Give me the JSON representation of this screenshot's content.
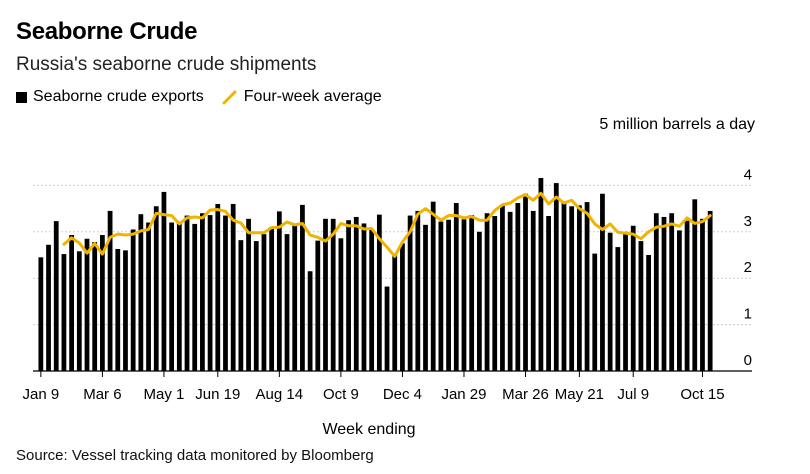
{
  "title": "Seaborne Crude",
  "subtitle": "Russia's seaborne crude shipments",
  "legend": {
    "bars": "Seaborne crude exports",
    "line": "Four-week average"
  },
  "unit_label": "5 million barrels a day",
  "xlabel": "Week ending",
  "source": "Source: Vessel tracking data monitored by Bloomberg",
  "colors": {
    "bars": "#000000",
    "line": "#f0b400",
    "axis": "#000000",
    "grid": "#cccccc"
  },
  "chart_data": {
    "type": "bar",
    "x_tick_labels": [
      "Jan 9",
      "Mar 6",
      "May 1",
      "Jun 19",
      "Aug 14",
      "Oct 9",
      "Dec 4",
      "Jan 29",
      "Mar 26",
      "May 21",
      "Jul 9",
      "Oct 15"
    ],
    "y_ticks": [
      0,
      1,
      2,
      3,
      4,
      5
    ],
    "ylim": [
      0,
      5
    ],
    "ylabel": "5 million barrels a day",
    "xlabel": "Week ending",
    "series": [
      {
        "name": "Seaborne crude exports",
        "kind": "bar",
        "values": [
          2.45,
          2.72,
          3.23,
          2.52,
          2.93,
          2.58,
          2.85,
          2.78,
          2.93,
          3.45,
          2.63,
          2.6,
          3.05,
          3.38,
          3.2,
          3.55,
          3.86,
          3.2,
          3.22,
          3.35,
          3.17,
          3.4,
          3.36,
          3.6,
          3.35,
          3.6,
          2.82,
          3.28,
          2.8,
          2.95,
          3.1,
          3.44,
          2.95,
          3.16,
          3.58,
          2.15,
          2.81,
          3.28,
          3.28,
          2.86,
          3.25,
          3.32,
          3.18,
          3.04,
          3.37,
          1.82,
          2.52,
          2.75,
          3.35,
          3.45,
          3.15,
          3.65,
          3.22,
          3.26,
          3.62,
          3.27,
          3.36,
          3.0,
          3.4,
          3.34,
          3.57,
          3.43,
          3.62,
          3.82,
          3.45,
          4.16,
          3.34,
          4.05,
          3.62,
          3.55,
          3.57,
          3.64,
          2.53,
          3.82,
          2.98,
          2.67,
          3.0,
          3.13,
          2.8,
          2.5,
          3.4,
          3.32,
          3.4,
          3.03,
          3.24,
          3.7,
          3.28,
          3.45
        ],
        "color": "#000000"
      },
      {
        "name": "Four-week average",
        "kind": "line",
        "values": [
          null,
          null,
          null,
          2.73,
          2.87,
          2.76,
          2.54,
          2.75,
          2.52,
          2.88,
          2.95,
          2.93,
          2.95,
          3.02,
          3.05,
          3.4,
          3.37,
          3.35,
          3.17,
          3.3,
          3.32,
          3.3,
          3.47,
          3.48,
          3.44,
          3.25,
          3.19,
          2.98,
          2.98,
          2.98,
          3.09,
          3.1,
          3.21,
          3.15,
          3.18,
          2.93,
          2.88,
          2.8,
          2.95,
          3.18,
          3.13,
          3.13,
          3.06,
          3.07,
          2.85,
          2.67,
          2.47,
          2.78,
          3.0,
          3.38,
          3.5,
          3.38,
          3.25,
          3.35,
          3.35,
          3.3,
          3.33,
          3.25,
          3.25,
          3.46,
          3.58,
          3.62,
          3.73,
          3.8,
          3.68,
          3.83,
          3.6,
          3.75,
          3.62,
          3.68,
          3.5,
          3.4,
          3.17,
          3.05,
          3.17,
          2.99,
          2.97,
          2.95,
          2.85,
          3.0,
          3.1,
          3.12,
          3.17,
          3.12,
          3.3,
          3.18,
          3.22,
          3.35
        ],
        "color": "#f0b400"
      }
    ],
    "grid": "horizontal"
  }
}
